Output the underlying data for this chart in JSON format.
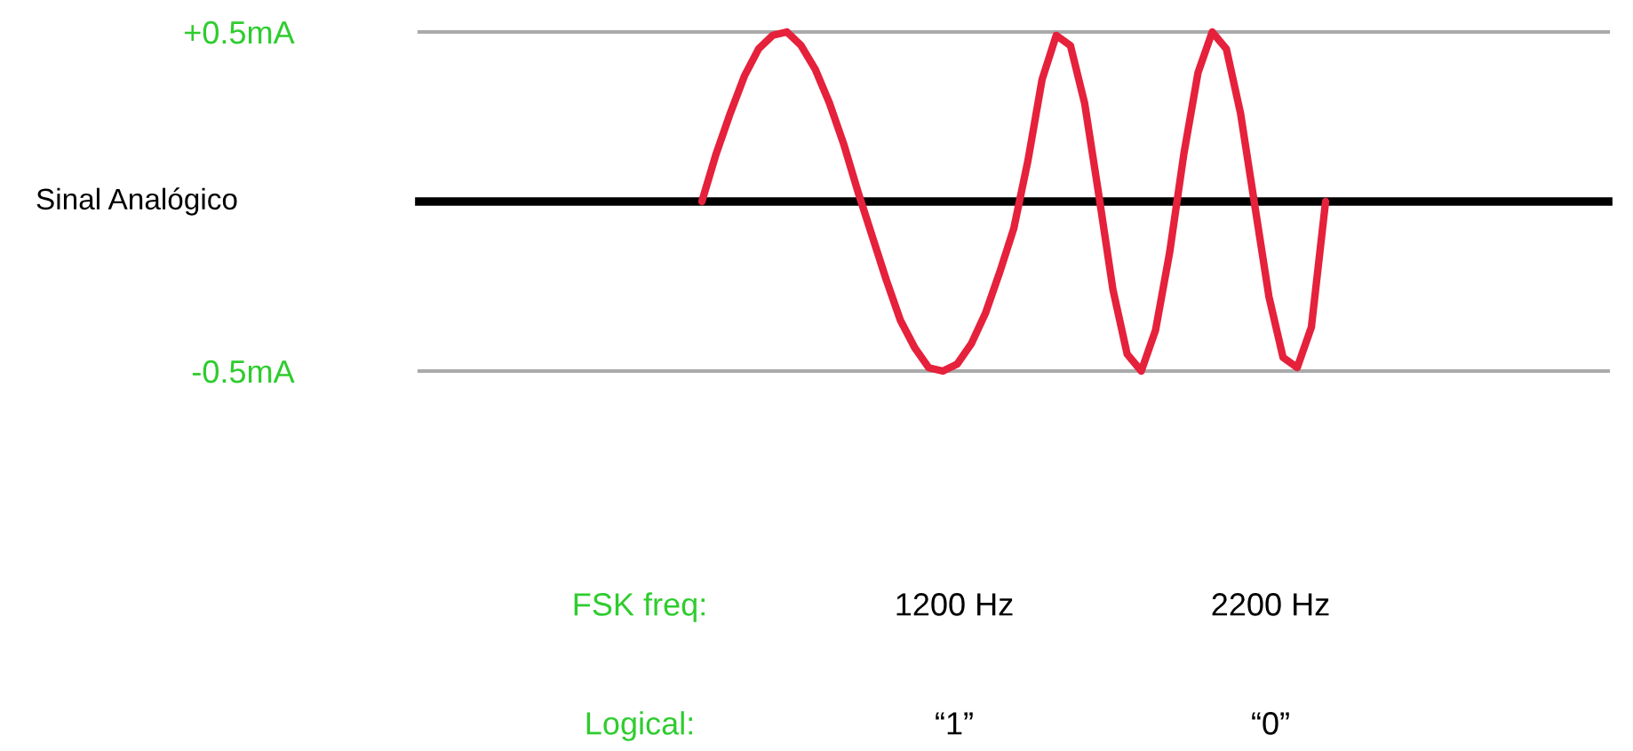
{
  "chart_data": {
    "type": "line",
    "categories": [
      null,
      null,
      null,
      null,
      null,
      null,
      null,
      null,
      null,
      null,
      null,
      null,
      null,
      null,
      null,
      null,
      null,
      null,
      null,
      null,
      null,
      null,
      null,
      null,
      null,
      null,
      null,
      null,
      null,
      null,
      null,
      null,
      null,
      null,
      null,
      null,
      null,
      null,
      null,
      null,
      null,
      null,
      null,
      null,
      null
    ],
    "series": [
      {
        "color": "#e5213c",
        "values": [
          0,
          0.14,
          0.26,
          0.37,
          0.45,
          0.49,
          0.5,
          0.46,
          0.39,
          0.29,
          0.17,
          0.03,
          -0.1,
          -0.23,
          -0.35,
          -0.43,
          -0.49,
          -0.5,
          -0.48,
          -0.42,
          -0.33,
          -0.21,
          -0.08,
          0.12,
          0.36,
          0.49,
          0.46,
          0.29,
          0.02,
          -0.26,
          -0.45,
          -0.5,
          -0.38,
          -0.15,
          0.14,
          0.38,
          0.5,
          0.45,
          0.26,
          -0.01,
          -0.28,
          -0.46,
          -0.49,
          -0.37,
          0
        ]
      }
    ],
    "ylim": [
      -0.5,
      0.5
    ],
    "yticks": [
      {
        "value": 0.5,
        "label": "+0.5mA"
      },
      {
        "value": -0.5,
        "label": "-0.5mA"
      }
    ],
    "grid": "y",
    "tick_labels": "y",
    "ref_lines": [
      {
        "axis": "y",
        "value": 0,
        "color": "#000000",
        "label": "Sinal Analógico"
      }
    ],
    "annotations": [
      "FSK freq:",
      "1200 Hz",
      "2200 Hz",
      "Logical:",
      "“1”",
      "“0”"
    ]
  }
}
